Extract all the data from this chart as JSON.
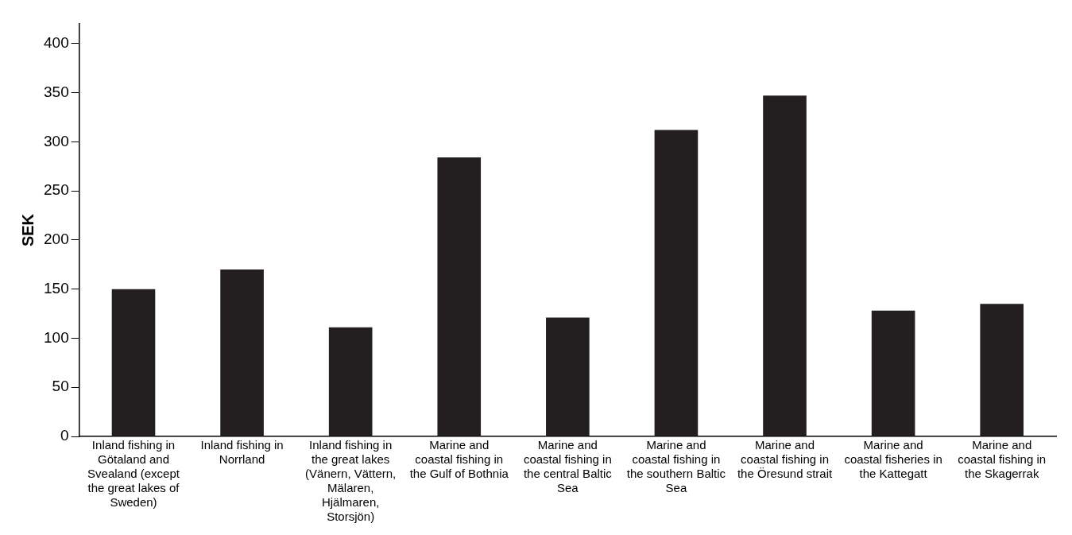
{
  "chart_data": {
    "type": "bar",
    "ylabel": "SEK",
    "categories": [
      "Inland fishing in Götaland and Svealand (except the great lakes of Sweden)",
      "Inland fishing in Norrland",
      "Inland fishing in the great lakes (Vänern, Vättern, Mälaren, Hjälmaren, Storsjön)",
      "Marine and coastal fishing in the Gulf of Bothnia",
      "Marine and coastal fishing in the central Baltic Sea",
      "Marine and coastal fishing in the southern Baltic Sea",
      "Marine and coastal fishing in the Öresund strait",
      "Marine and coastal fisheries in the Kattegatt",
      "Marine and coastal fishing in the Skagerrak"
    ],
    "values": [
      150,
      170,
      111,
      284,
      121,
      312,
      347,
      128,
      135
    ],
    "color": "#231f20",
    "ylim": [
      0,
      420
    ],
    "yticks": [
      0,
      50,
      100,
      150,
      200,
      250,
      300,
      350,
      400
    ],
    "grid": false,
    "legend": false
  }
}
